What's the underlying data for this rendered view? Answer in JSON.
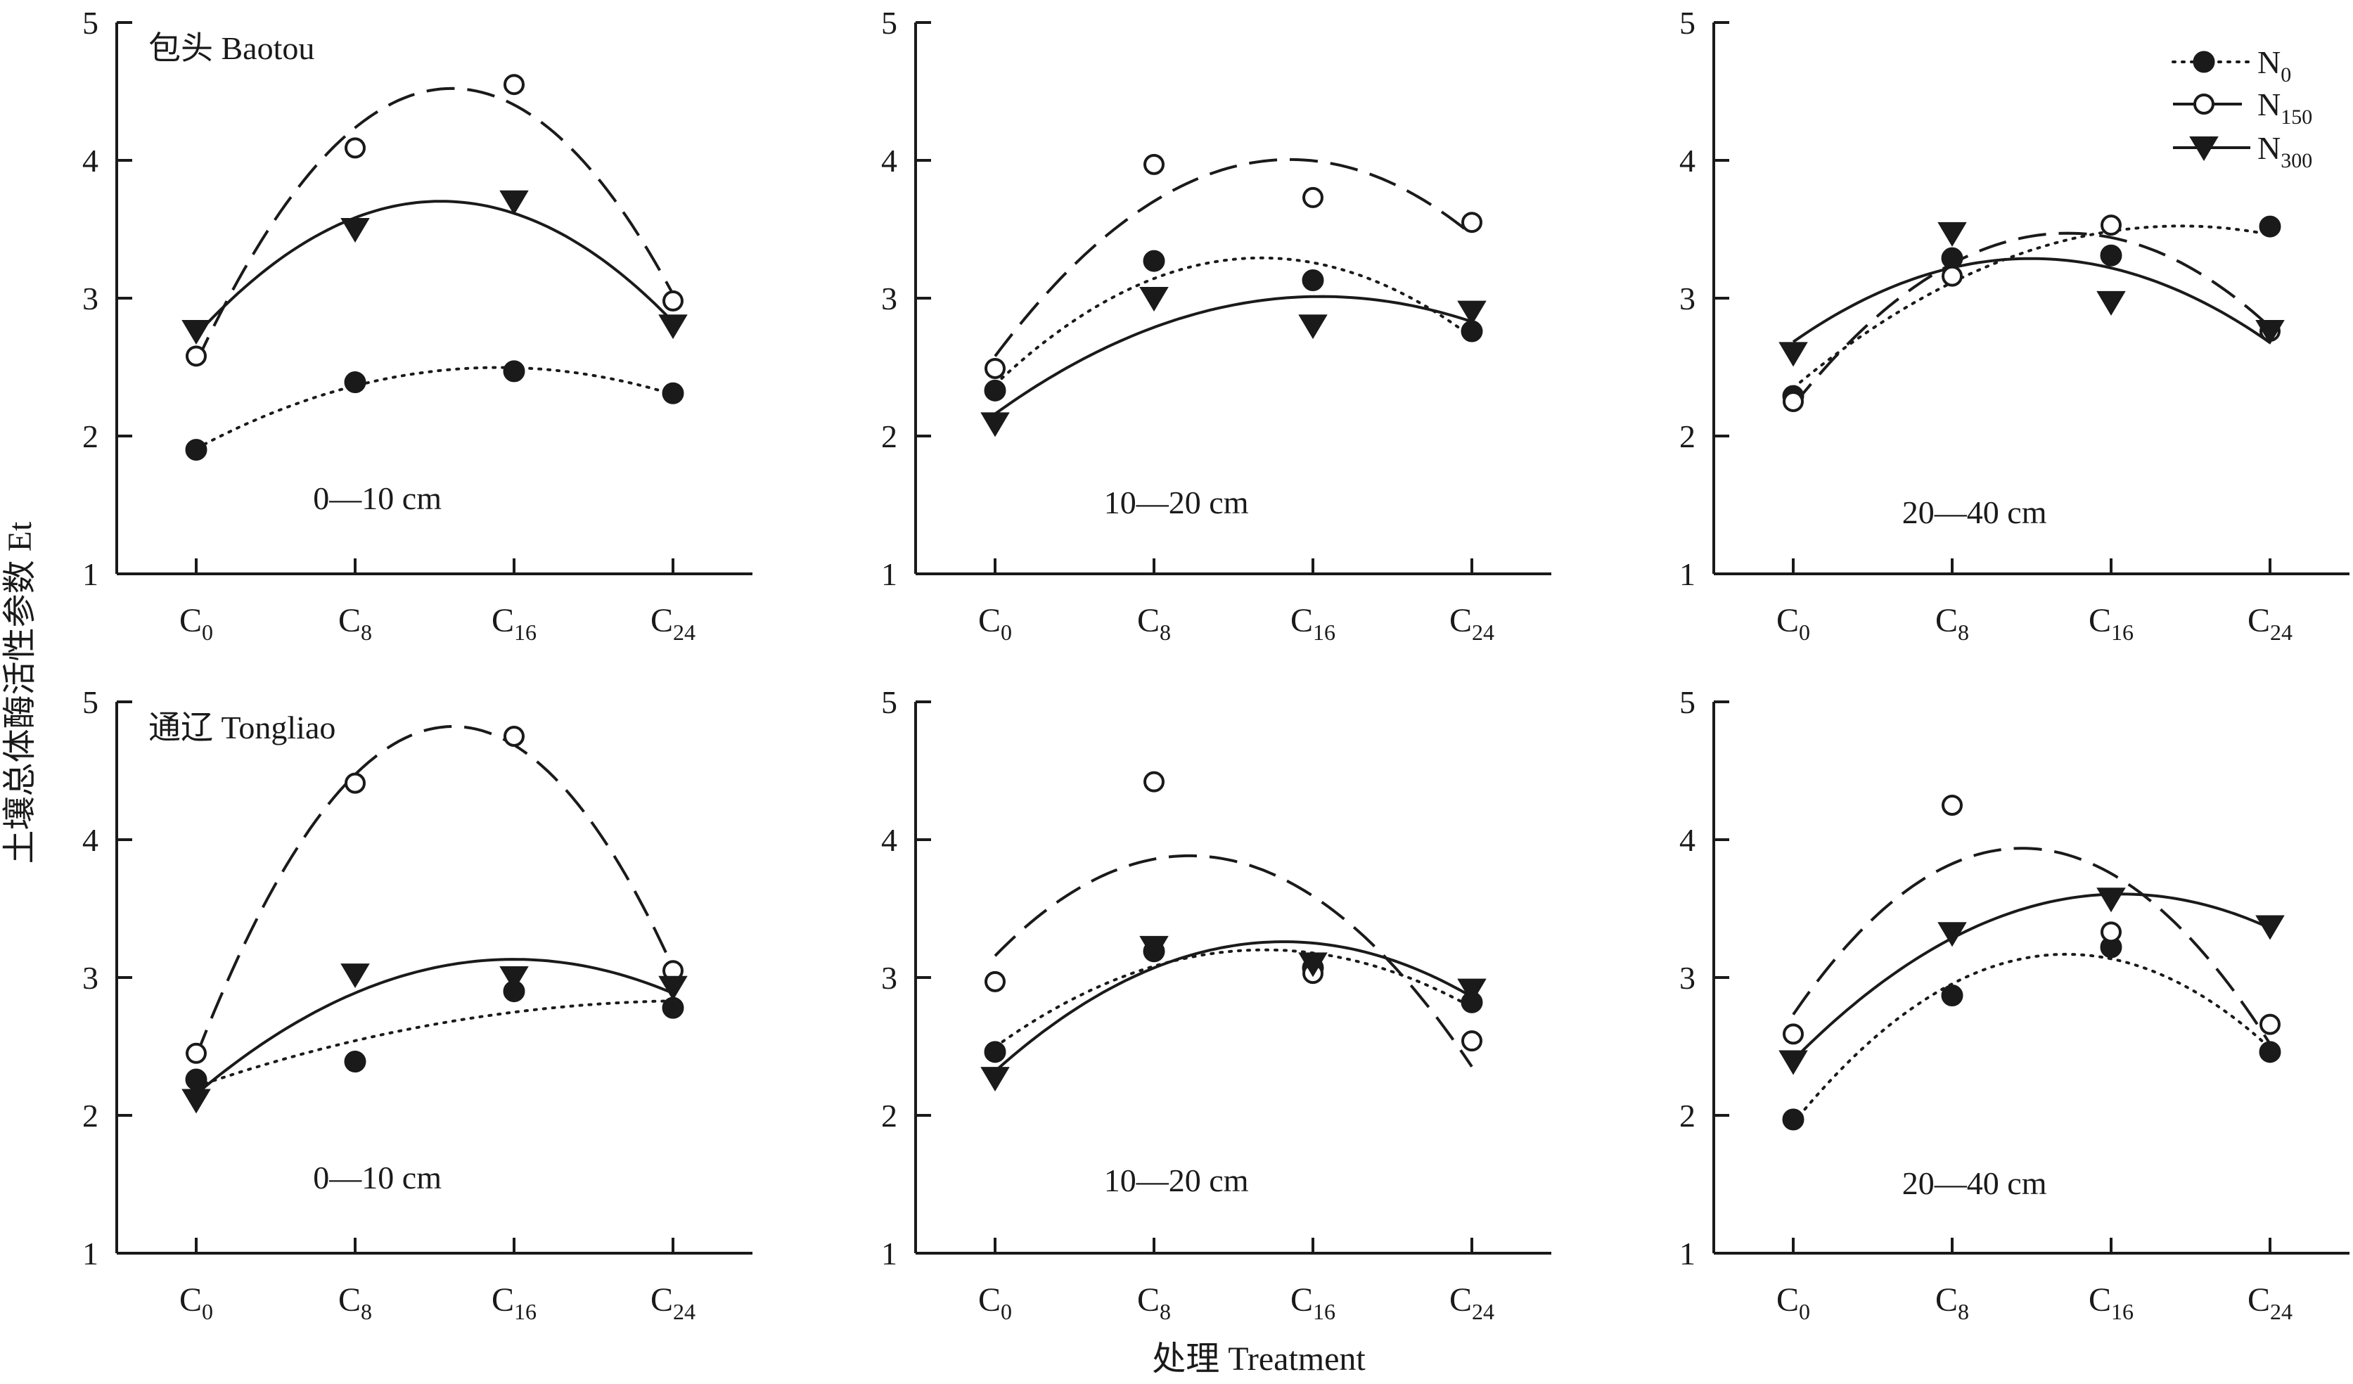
{
  "figure": {
    "y_axis_title": "土壤总体酶活性参数 Et",
    "x_axis_title": "处理 Treatment"
  },
  "legend": [
    {
      "id": "N0",
      "base": "N",
      "sub": "0"
    },
    {
      "id": "N150",
      "base": "N",
      "sub": "150"
    },
    {
      "id": "N300",
      "base": "N",
      "sub": "300"
    }
  ],
  "chart_data": [
    {
      "type": "scatter",
      "region": "包头 Baotou",
      "depth": "0—10 cm",
      "categories": [
        {
          "base": "C",
          "sub": "0"
        },
        {
          "base": "C",
          "sub": "8"
        },
        {
          "base": "C",
          "sub": "16"
        },
        {
          "base": "C",
          "sub": "24"
        }
      ],
      "yticks": [
        "1",
        "2",
        "3",
        "4",
        "5"
      ],
      "ylim": [
        1,
        5
      ],
      "series": [
        {
          "name": "N0",
          "values": [
            1.9,
            2.39,
            2.47,
            2.31
          ]
        },
        {
          "name": "N150",
          "values": [
            2.58,
            4.09,
            4.55,
            2.98
          ]
        },
        {
          "name": "N300",
          "values": [
            2.76,
            3.5,
            3.7,
            2.8
          ]
        }
      ]
    },
    {
      "type": "scatter",
      "region": "",
      "depth": "10—20 cm",
      "categories": [
        {
          "base": "C",
          "sub": "0"
        },
        {
          "base": "C",
          "sub": "8"
        },
        {
          "base": "C",
          "sub": "16"
        },
        {
          "base": "C",
          "sub": "24"
        }
      ],
      "yticks": [
        "1",
        "2",
        "3",
        "4",
        "5"
      ],
      "ylim": [
        1,
        5
      ],
      "series": [
        {
          "name": "N0",
          "values": [
            2.33,
            3.27,
            3.13,
            2.76
          ]
        },
        {
          "name": "N150",
          "values": [
            2.49,
            3.97,
            3.73,
            3.55
          ]
        },
        {
          "name": "N300",
          "values": [
            2.09,
            3.0,
            2.8,
            2.9
          ]
        }
      ]
    },
    {
      "type": "scatter",
      "region": "",
      "depth": "20—40 cm",
      "categories": [
        {
          "base": "C",
          "sub": "0"
        },
        {
          "base": "C",
          "sub": "8"
        },
        {
          "base": "C",
          "sub": "16"
        },
        {
          "base": "C",
          "sub": "24"
        }
      ],
      "yticks": [
        "1",
        "2",
        "3",
        "4",
        "5"
      ],
      "ylim": [
        1,
        5
      ],
      "series": [
        {
          "name": "N0",
          "values": [
            2.29,
            3.29,
            3.31,
            3.52
          ]
        },
        {
          "name": "N150",
          "values": [
            2.25,
            3.16,
            3.53,
            2.76
          ]
        },
        {
          "name": "N300",
          "values": [
            2.6,
            3.47,
            2.97,
            2.76
          ]
        }
      ]
    },
    {
      "type": "scatter",
      "region": "通辽 Tongliao",
      "depth": "0—10 cm",
      "categories": [
        {
          "base": "C",
          "sub": "0"
        },
        {
          "base": "C",
          "sub": "8"
        },
        {
          "base": "C",
          "sub": "16"
        },
        {
          "base": "C",
          "sub": "24"
        }
      ],
      "yticks": [
        "1",
        "2",
        "3",
        "4",
        "5"
      ],
      "ylim": [
        1,
        5
      ],
      "series": [
        {
          "name": "N0",
          "values": [
            2.26,
            2.39,
            2.9,
            2.78
          ]
        },
        {
          "name": "N150",
          "values": [
            2.45,
            4.41,
            4.75,
            3.05
          ]
        },
        {
          "name": "N300",
          "values": [
            2.11,
            3.02,
            3.0,
            2.93
          ]
        }
      ]
    },
    {
      "type": "scatter",
      "region": "",
      "depth": "10—20 cm",
      "categories": [
        {
          "base": "C",
          "sub": "0"
        },
        {
          "base": "C",
          "sub": "8"
        },
        {
          "base": "C",
          "sub": "16"
        },
        {
          "base": "C",
          "sub": "24"
        }
      ],
      "yticks": [
        "1",
        "2",
        "3",
        "4",
        "5"
      ],
      "ylim": [
        1,
        5
      ],
      "series": [
        {
          "name": "N0",
          "values": [
            2.46,
            3.19,
            3.07,
            2.82
          ]
        },
        {
          "name": "N150",
          "values": [
            2.97,
            4.42,
            3.03,
            2.54
          ]
        },
        {
          "name": "N300",
          "values": [
            2.27,
            3.22,
            3.1,
            2.91
          ]
        }
      ]
    },
    {
      "type": "scatter",
      "region": "",
      "depth": "20—40 cm",
      "categories": [
        {
          "base": "C",
          "sub": "0"
        },
        {
          "base": "C",
          "sub": "8"
        },
        {
          "base": "C",
          "sub": "16"
        },
        {
          "base": "C",
          "sub": "24"
        }
      ],
      "yticks": [
        "1",
        "2",
        "3",
        "4",
        "5"
      ],
      "ylim": [
        1,
        5
      ],
      "series": [
        {
          "name": "N0",
          "values": [
            1.97,
            2.87,
            3.22,
            2.46
          ]
        },
        {
          "name": "N150",
          "values": [
            2.59,
            4.25,
            3.33,
            2.66
          ]
        },
        {
          "name": "N300",
          "values": [
            2.39,
            3.32,
            3.57,
            3.37
          ]
        }
      ]
    }
  ]
}
